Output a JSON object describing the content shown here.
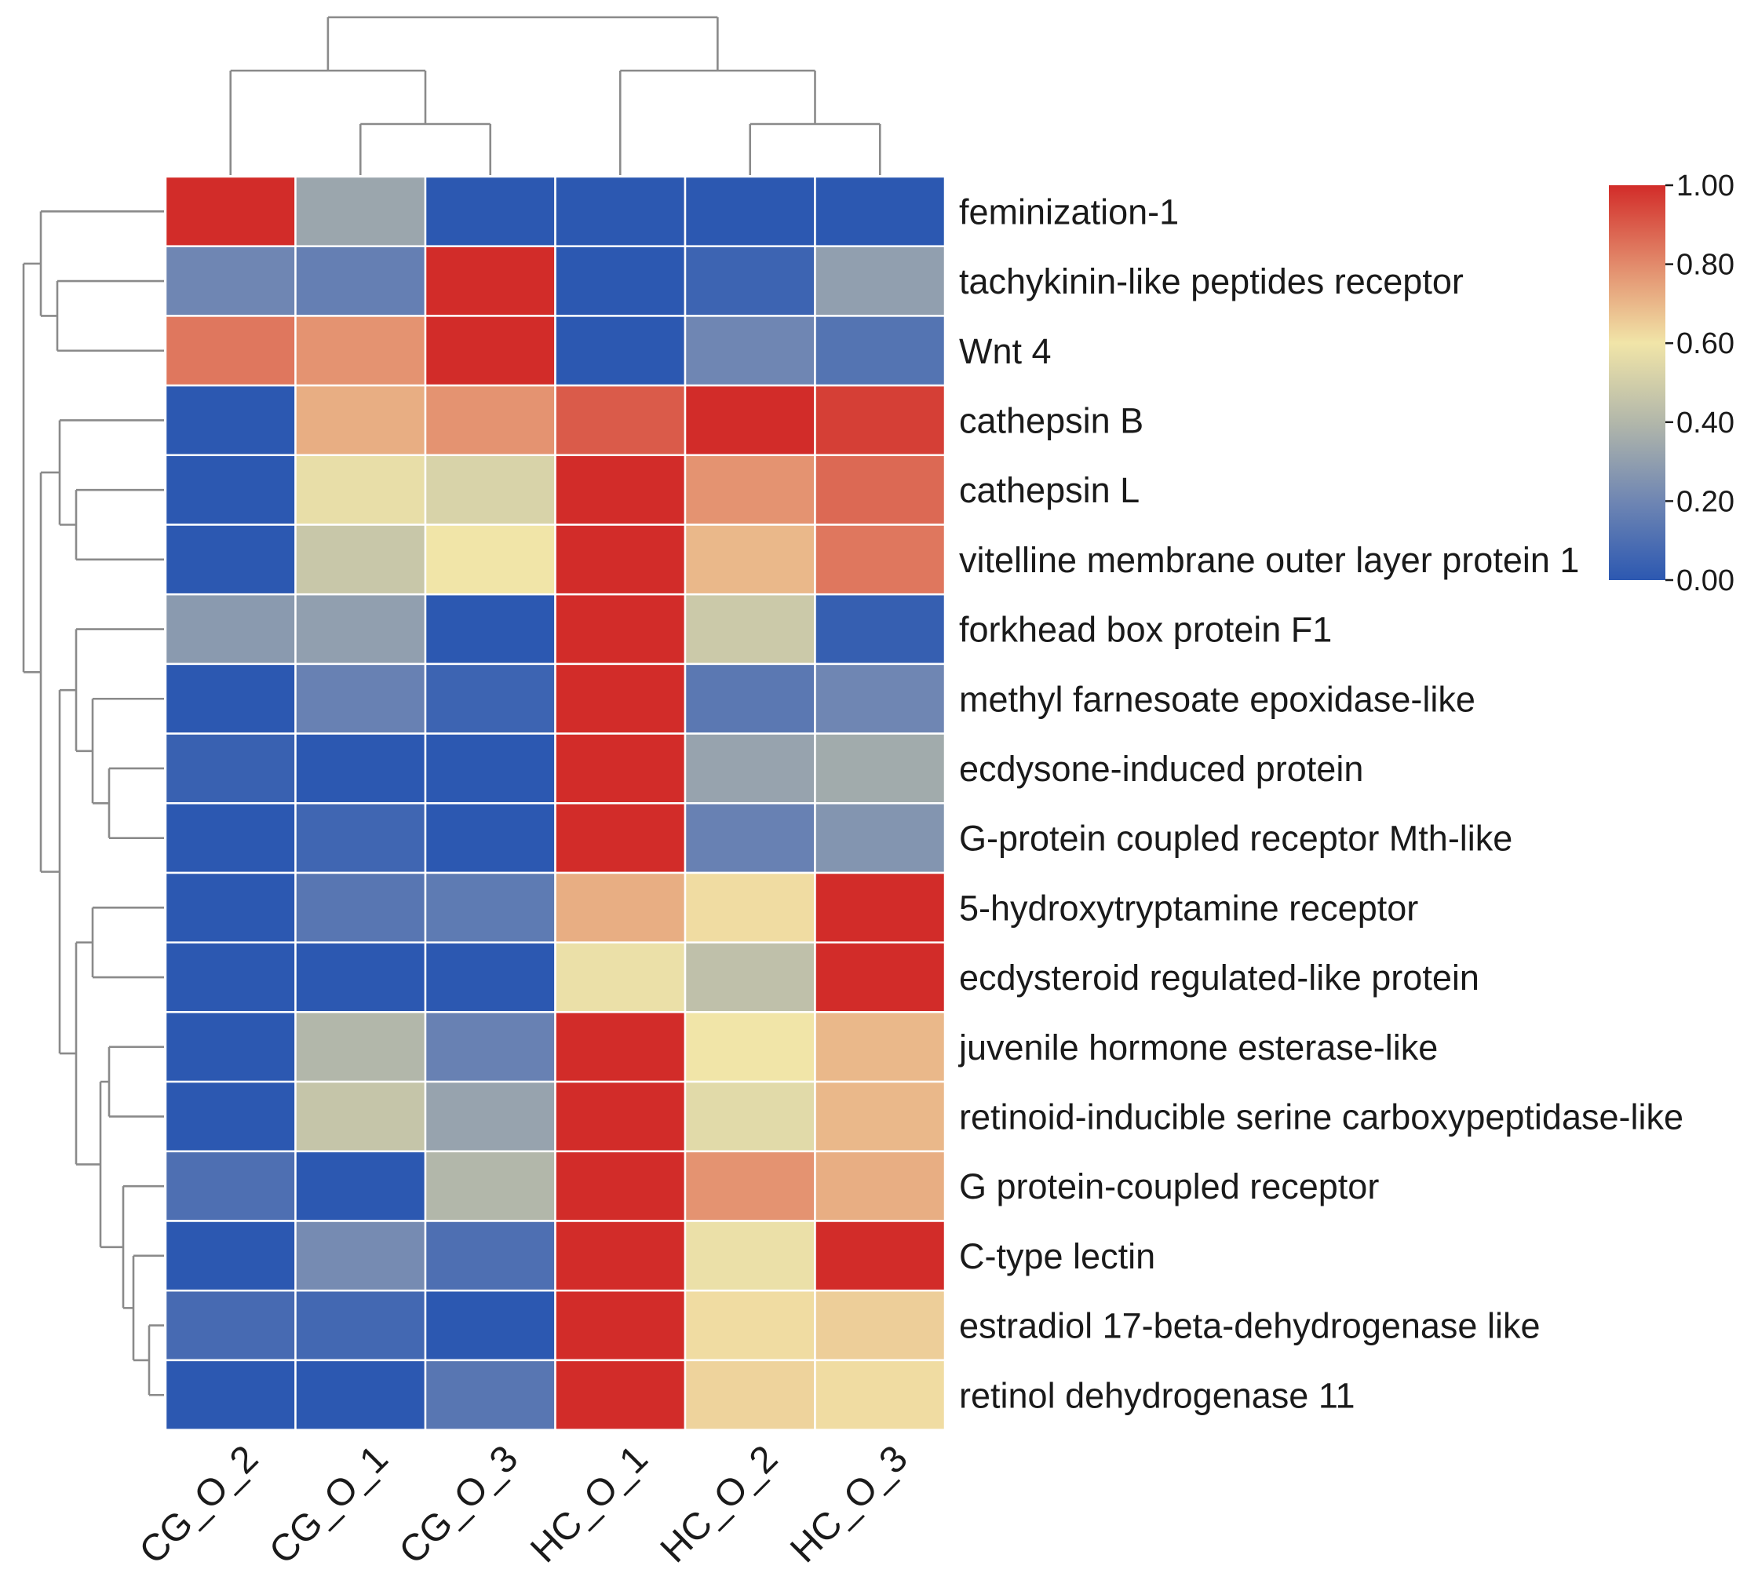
{
  "chart_data": {
    "type": "heatmap",
    "title": "",
    "columns": [
      "CG_O_2",
      "CG_O_1",
      "CG_O_3",
      "HC_O_1",
      "HC_O_2",
      "HC_O_3"
    ],
    "rows": [
      "feminization-1",
      "tachykinin-like peptides receptor",
      "Wnt 4",
      "cathepsin B",
      "cathepsin L",
      "vitelline membrane outer layer protein 1",
      "forkhead box protein F1",
      "methyl farnesoate epoxidase-like",
      "ecdysone-induced protein",
      "G-protein coupled receptor Mth-like",
      "5-hydroxytryptamine receptor",
      "ecdysteroid regulated-like protein",
      "juvenile hormone esterase-like",
      "retinoid-inducible serine carboxypeptidase-like",
      "G protein-coupled receptor",
      "C-type lectin",
      "estradiol 17-beta-dehydrogenase like",
      "retinol dehydrogenase 11"
    ],
    "values": [
      [
        1.0,
        0.33,
        0.0,
        0.0,
        0.0,
        0.0
      ],
      [
        0.2,
        0.17,
        1.0,
        0.0,
        0.05,
        0.3
      ],
      [
        0.84,
        0.78,
        1.0,
        0.0,
        0.2,
        0.12
      ],
      [
        0.0,
        0.72,
        0.78,
        0.9,
        1.0,
        0.96
      ],
      [
        0.0,
        0.57,
        0.52,
        1.0,
        0.78,
        0.87
      ],
      [
        0.0,
        0.47,
        0.6,
        1.0,
        0.7,
        0.84
      ],
      [
        0.28,
        0.3,
        0.0,
        1.0,
        0.48,
        0.03
      ],
      [
        0.0,
        0.18,
        0.05,
        1.0,
        0.14,
        0.2
      ],
      [
        0.04,
        0.0,
        0.0,
        1.0,
        0.32,
        0.35
      ],
      [
        0.0,
        0.06,
        0.0,
        1.0,
        0.18,
        0.26
      ],
      [
        0.0,
        0.13,
        0.15,
        0.72,
        0.62,
        1.0
      ],
      [
        0.0,
        0.0,
        0.0,
        0.58,
        0.44,
        1.0
      ],
      [
        0.0,
        0.4,
        0.18,
        1.0,
        0.6,
        0.7
      ],
      [
        0.0,
        0.46,
        0.32,
        1.0,
        0.55,
        0.7
      ],
      [
        0.1,
        0.0,
        0.4,
        1.0,
        0.78,
        0.72
      ],
      [
        0.0,
        0.22,
        0.1,
        1.0,
        0.58,
        1.0
      ],
      [
        0.08,
        0.07,
        0.0,
        1.0,
        0.62,
        0.65
      ],
      [
        0.0,
        0.0,
        0.13,
        1.0,
        0.64,
        0.62
      ]
    ],
    "colorbar": {
      "min": 0.0,
      "max": 1.0,
      "ticks": [
        "0.00",
        "0.20",
        "0.40",
        "0.60",
        "0.80",
        "1.00"
      ],
      "stops": [
        "#2c58b1",
        "#6f86b3",
        "#b2b7aa",
        "#f1e5a8",
        "#e28a6b",
        "#d22c29"
      ]
    },
    "column_dendrogram": {
      "merges": [
        [
          "HC_O_2",
          "HC_O_3"
        ],
        [
          "CG_O_1",
          "CG_O_3"
        ],
        [
          "CG_O_2",
          "[CG_O_1,CG_O_3]"
        ],
        [
          "HC_O_1",
          "[HC_O_2,HC_O_3]"
        ],
        [
          "CG cluster",
          "HC cluster"
        ]
      ]
    },
    "row_dendrogram": "shown on left",
    "grid": false
  }
}
